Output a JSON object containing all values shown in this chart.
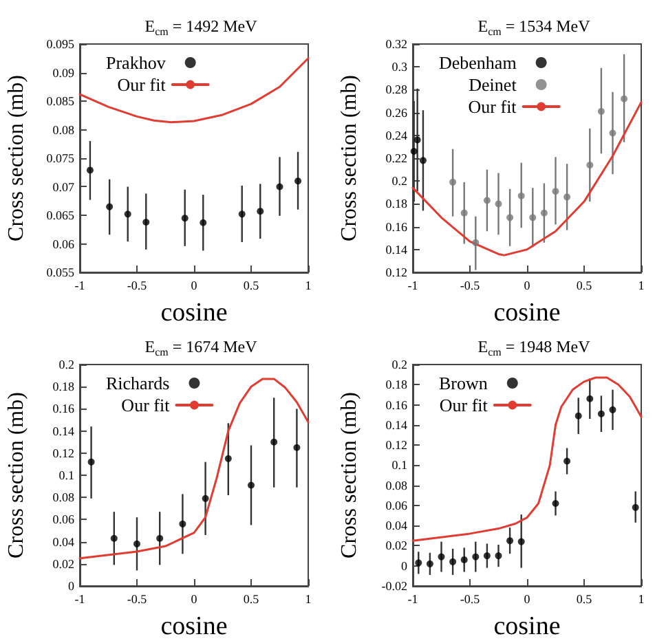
{
  "chart_data": [
    {
      "type": "scatter",
      "title": "E$_{cm}$ = 1492 MeV",
      "xlabel": "cosine",
      "ylabel": "Cross section (mb)",
      "xlim": [
        -1,
        1
      ],
      "xticks": [
        -1,
        -0.5,
        0,
        0.5,
        1
      ],
      "ylim": [
        0.055,
        0.095
      ],
      "yticks": [
        0.055,
        0.06,
        0.065,
        0.07,
        0.075,
        0.08,
        0.085,
        0.09,
        0.095
      ],
      "legend": "top left",
      "grid": false,
      "series": [
        {
          "name": "Prakhov",
          "type": "scatter",
          "color": "#000000",
          "marker": "circle",
          "x": [
            -0.91,
            -0.74,
            -0.58,
            -0.42,
            -0.08,
            0.08,
            0.42,
            0.58,
            0.75,
            0.91
          ],
          "values": [
            0.0729,
            0.0665,
            0.0652,
            0.0638,
            0.0645,
            0.0637,
            0.0652,
            0.0657,
            0.07,
            0.071
          ],
          "errors": [
            [
              0.0677,
              0.078
            ],
            [
              0.0616,
              0.0713
            ],
            [
              0.0604,
              0.07
            ],
            [
              0.059,
              0.0688
            ],
            [
              0.0596,
              0.0695
            ],
            [
              0.0588,
              0.0686
            ],
            [
              0.0603,
              0.0702
            ],
            [
              0.0609,
              0.0705
            ],
            [
              0.0649,
              0.0752
            ],
            [
              0.066,
              0.0761
            ]
          ]
        },
        {
          "name": "Our fit",
          "type": "line",
          "color": "#e03c31",
          "marker": "none",
          "x": [
            -1,
            -0.75,
            -0.5,
            -0.35,
            -0.2,
            0,
            0.25,
            0.5,
            0.75,
            1
          ],
          "values": [
            0.0862,
            0.084,
            0.0823,
            0.0816,
            0.0813,
            0.0815,
            0.0826,
            0.0845,
            0.0875,
            0.0925
          ]
        }
      ]
    },
    {
      "type": "scatter",
      "title": "E$_{cm}$ = 1534 MeV",
      "xlabel": "cosine",
      "ylabel": "Cross section (mb)",
      "xlim": [
        -1,
        1
      ],
      "xticks": [
        -1,
        -0.5,
        0,
        0.5,
        1
      ],
      "ylim": [
        0.12,
        0.32
      ],
      "yticks": [
        0.12,
        0.14,
        0.16,
        0.18,
        0.2,
        0.22,
        0.24,
        0.26,
        0.28,
        0.3,
        0.32
      ],
      "legend": "top left",
      "grid": false,
      "series": [
        {
          "name": "Debenham",
          "type": "scatter",
          "color": "#000000",
          "marker": "circle",
          "x": [
            -0.99,
            -0.96,
            -0.91
          ],
          "values": [
            0.226,
            0.236,
            0.218
          ],
          "errors": [
            [
              0.182,
              0.27
            ],
            [
              0.191,
              0.281
            ],
            [
              0.174,
              0.262
            ]
          ]
        },
        {
          "name": "Deinet",
          "type": "scatter",
          "color": "#777777",
          "marker": "circle",
          "x": [
            -0.65,
            -0.55,
            -0.45,
            -0.35,
            -0.25,
            -0.15,
            -0.05,
            0.05,
            0.15,
            0.25,
            0.35,
            0.55,
            0.65,
            0.75,
            0.85
          ],
          "values": [
            0.199,
            0.172,
            0.146,
            0.183,
            0.18,
            0.168,
            0.187,
            0.168,
            0.172,
            0.191,
            0.186,
            0.214,
            0.261,
            0.242,
            0.272
          ],
          "errors": [
            [
              0.169,
              0.228
            ],
            [
              0.145,
              0.199
            ],
            [
              0.122,
              0.169
            ],
            [
              0.156,
              0.21
            ],
            [
              0.153,
              0.207
            ],
            [
              0.143,
              0.193
            ],
            [
              0.159,
              0.216
            ],
            [
              0.142,
              0.194
            ],
            [
              0.146,
              0.198
            ],
            [
              0.162,
              0.221
            ],
            [
              0.157,
              0.215
            ],
            [
              0.182,
              0.246
            ],
            [
              0.224,
              0.299
            ],
            [
              0.206,
              0.278
            ],
            [
              0.234,
              0.311
            ]
          ]
        },
        {
          "name": "Our fit",
          "type": "line",
          "color": "#e03c31",
          "marker": "none",
          "x": [
            -1,
            -0.75,
            -0.5,
            -0.25,
            -0.2,
            0,
            0.25,
            0.5,
            0.75,
            1
          ],
          "values": [
            0.194,
            0.168,
            0.147,
            0.136,
            0.135,
            0.14,
            0.156,
            0.182,
            0.222,
            0.269
          ]
        }
      ]
    },
    {
      "type": "scatter",
      "title": "E$_{cm}$ = 1674 MeV",
      "xlabel": "cosine",
      "ylabel": "Cross section (mb)",
      "xlim": [
        -1,
        1
      ],
      "xticks": [
        -1,
        -0.5,
        0,
        0.5,
        1
      ],
      "ylim": [
        0,
        0.2
      ],
      "yticks": [
        0,
        0.02,
        0.04,
        0.06,
        0.08,
        0.1,
        0.12,
        0.14,
        0.16,
        0.18,
        0.2
      ],
      "legend": "top left",
      "grid": false,
      "series": [
        {
          "name": "Richards",
          "type": "scatter",
          "color": "#000000",
          "marker": "circle",
          "x": [
            -0.9,
            -0.7,
            -0.5,
            -0.3,
            -0.1,
            0.1,
            0.3,
            0.5,
            0.7,
            0.9
          ],
          "values": [
            0.112,
            0.043,
            0.038,
            0.043,
            0.056,
            0.079,
            0.115,
            0.091,
            0.13,
            0.125
          ],
          "errors": [
            [
              0.079,
              0.144
            ],
            [
              0.019,
              0.067
            ],
            [
              0.014,
              0.062
            ],
            [
              0.019,
              0.067
            ],
            [
              0.029,
              0.083
            ],
            [
              0.046,
              0.112
            ],
            [
              0.082,
              0.147
            ],
            [
              0.055,
              0.127
            ],
            [
              0.089,
              0.17
            ],
            [
              0.089,
              0.16
            ]
          ]
        },
        {
          "name": "Our fit",
          "type": "line",
          "color": "#e03c31",
          "marker": "none",
          "x": [
            -1,
            -0.5,
            -0.25,
            0,
            0.1,
            0.2,
            0.3,
            0.4,
            0.5,
            0.6,
            0.7,
            0.8,
            0.9,
            1
          ],
          "values": [
            0.025,
            0.031,
            0.036,
            0.048,
            0.062,
            0.098,
            0.14,
            0.165,
            0.18,
            0.187,
            0.187,
            0.179,
            0.166,
            0.148
          ]
        }
      ]
    },
    {
      "type": "scatter",
      "title": "E$_{cm}$ = 1948 MeV",
      "xlabel": "cosine",
      "ylabel": "Cross section (mb)",
      "xlim": [
        -1,
        1
      ],
      "xticks": [
        -1,
        -0.5,
        0,
        0.5,
        1
      ],
      "ylim": [
        -0.02,
        0.2
      ],
      "yticks": [
        -0.02,
        0,
        0.02,
        0.04,
        0.06,
        0.08,
        0.1,
        0.12,
        0.14,
        0.16,
        0.18,
        0.2
      ],
      "legend": "top left",
      "grid": false,
      "series": [
        {
          "name": "Brown",
          "type": "scatter",
          "color": "#000000",
          "marker": "circle",
          "x": [
            -0.95,
            -0.85,
            -0.75,
            -0.65,
            -0.55,
            -0.45,
            -0.35,
            -0.25,
            -0.15,
            -0.05,
            0.25,
            0.35,
            0.45,
            0.55,
            0.65,
            0.75,
            0.95
          ],
          "values": [
            0.003,
            0.002,
            0.009,
            0.004,
            0.006,
            0.009,
            0.01,
            0.01,
            0.025,
            0.024,
            0.062,
            0.104,
            0.149,
            0.166,
            0.151,
            0.155,
            0.058
          ],
          "errors": [
            [
              -0.008,
              0.014
            ],
            [
              -0.009,
              0.013
            ],
            [
              -0.006,
              0.024
            ],
            [
              -0.009,
              0.017
            ],
            [
              -0.006,
              0.018
            ],
            [
              -0.006,
              0.024
            ],
            [
              -0.002,
              0.022
            ],
            [
              -0.001,
              0.021
            ],
            [
              0.012,
              0.038
            ],
            [
              -0.002,
              0.051
            ],
            [
              0.05,
              0.074
            ],
            [
              0.091,
              0.117
            ],
            [
              0.131,
              0.167
            ],
            [
              0.146,
              0.186
            ],
            [
              0.133,
              0.169
            ],
            [
              0.135,
              0.175
            ],
            [
              0.043,
              0.074
            ]
          ]
        },
        {
          "name": "Our fit",
          "type": "line",
          "color": "#e03c31",
          "marker": "none",
          "x": [
            -1,
            -0.5,
            -0.25,
            -0.1,
            0,
            0.1,
            0.2,
            0.25,
            0.3,
            0.4,
            0.5,
            0.6,
            0.7,
            0.8,
            0.9,
            1
          ],
          "values": [
            0.025,
            0.032,
            0.037,
            0.042,
            0.048,
            0.062,
            0.1,
            0.14,
            0.158,
            0.175,
            0.183,
            0.187,
            0.187,
            0.18,
            0.168,
            0.148
          ]
        }
      ]
    }
  ]
}
